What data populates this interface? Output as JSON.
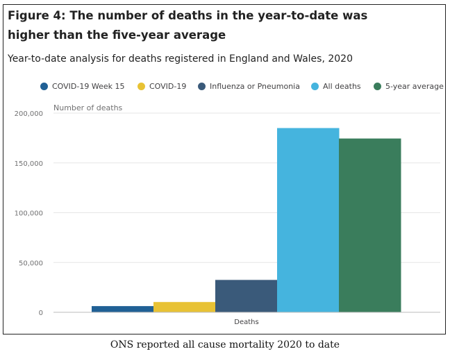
{
  "figure": {
    "title": "Figure 4: The number of deaths in the year-to-date was higher than the five-year average",
    "subtitle": "Year-to-date analysis for deaths registered in England and Wales, 2020",
    "caption": "ONS reported all cause mortality 2020 to date"
  },
  "legend": [
    {
      "label": "COVID-19 Week 15",
      "color": "#206095"
    },
    {
      "label": "COVID-19",
      "color": "#e8c234"
    },
    {
      "label": "Influenza or Pneumonia",
      "color": "#3a5a7a"
    },
    {
      "label": "All deaths",
      "color": "#45b4de"
    },
    {
      "label": "5-year average",
      "color": "#3a7d5c"
    }
  ],
  "chart_data": {
    "type": "bar",
    "title": "Figure 4: The number of deaths in the year-to-date was higher than the five-year average",
    "subtitle": "Year-to-date analysis for deaths registered in England and Wales, 2020",
    "categories": [
      "Deaths"
    ],
    "series": [
      {
        "name": "COVID-19 Week 15",
        "values": [
          6200
        ],
        "color": "#206095"
      },
      {
        "name": "COVID-19",
        "values": [
          10300
        ],
        "color": "#e8c234"
      },
      {
        "name": "Influenza or Pneumonia",
        "values": [
          32500
        ],
        "color": "#3a5a7a"
      },
      {
        "name": "All deaths",
        "values": [
          185000
        ],
        "color": "#45b4de"
      },
      {
        "name": "5-year average",
        "values": [
          174500
        ],
        "color": "#3a7d5c"
      }
    ],
    "xlabel": "",
    "ylabel": "Number of deaths",
    "ylim": [
      0,
      200000
    ],
    "yticks": [
      0,
      50000,
      100000,
      150000,
      200000
    ],
    "ytick_labels": [
      "0",
      "50,000",
      "100,000",
      "150,000",
      "200,000"
    ],
    "grid": true,
    "legend_position": "top"
  }
}
